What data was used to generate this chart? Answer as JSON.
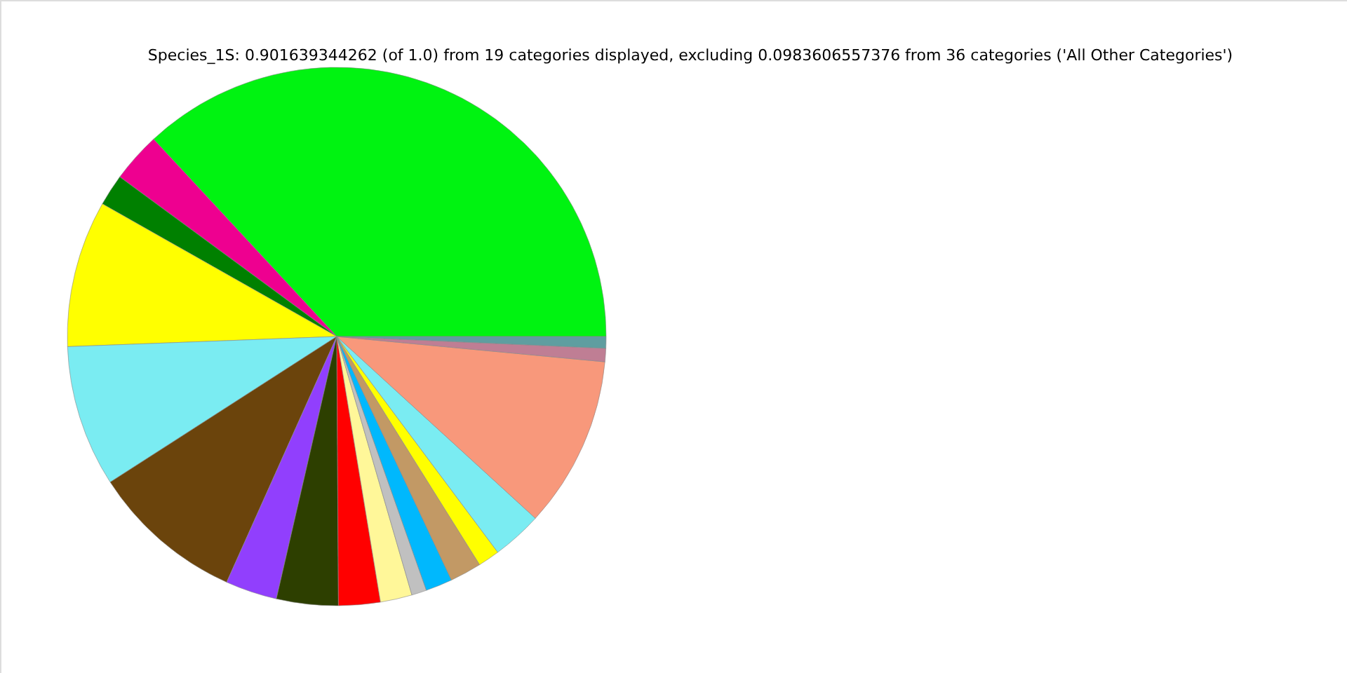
{
  "chart_data": {
    "type": "pie",
    "title": "Species_1S: 0.901639344262 (of 1.0) from 19 categories displayed, excluding 0.0983606557376 from 36 categories ('All Other Categories')",
    "categories": [
      null,
      null,
      null,
      null,
      null,
      null,
      null,
      null,
      null,
      null,
      null,
      null,
      null,
      null,
      null,
      null,
      null,
      null
    ],
    "values": [
      36.9,
      3.0,
      1.9,
      8.8,
      8.5,
      9.2,
      3.1,
      3.7,
      2.5,
      1.9,
      0.9,
      1.6,
      1.9,
      1.3,
      3.0,
      10.3,
      0.8,
      0.7
    ],
    "colors": [
      "#00f311",
      "#ee0090",
      "#008000",
      "#ffff00",
      "#7aecf2",
      "#6b440c",
      "#913ffd",
      "#2d3f00",
      "#ff0000",
      "#fff799",
      "#c0c0c0",
      "#00b8fd",
      "#c29965",
      "#ffff00",
      "#7aecf2",
      "#f8987b",
      "#bf7e94",
      "#5f9ea0"
    ]
  }
}
